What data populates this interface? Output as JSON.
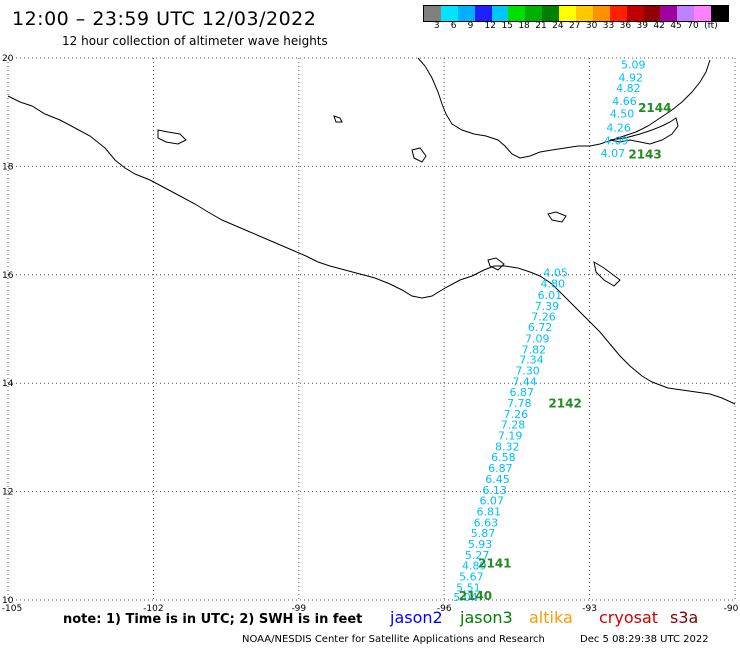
{
  "title": "12:00 – 23:59 UTC 12/03/2022",
  "subtitle": "12 hour collection of altimeter wave heights",
  "scale": {
    "colors": [
      "#808080",
      "#00e5ff",
      "#00b0ff",
      "#2020ff",
      "#00c8ff",
      "#00e000",
      "#00b000",
      "#008000",
      "#ffff00",
      "#ffc800",
      "#ff9000",
      "#ff2000",
      "#c00000",
      "#900000",
      "#a000a0",
      "#c080ff",
      "#ff80ff",
      "#000000"
    ],
    "labels": [
      "3",
      "6",
      "9",
      "12",
      "15",
      "18",
      "21",
      "24",
      "27",
      "30",
      "33",
      "36",
      "39",
      "42",
      "45",
      "70",
      "(ft)"
    ]
  },
  "map": {
    "lon_range": [
      -105,
      -90
    ],
    "lat_range": [
      10,
      20
    ],
    "lon_ticks": [
      "-105",
      "-102",
      "-99",
      "-96",
      "-93",
      "-90"
    ],
    "lat_ticks": [
      "20",
      "18",
      "16",
      "14",
      "12",
      "10"
    ],
    "pass_color": "#228b22",
    "wave_color": "#00bfff",
    "passes": [
      {
        "id": "2144",
        "lat": 19.0,
        "lon": -92.0
      },
      {
        "id": "2143",
        "lat": 18.15,
        "lon": -92.2
      },
      {
        "id": "2142",
        "lat": 13.55,
        "lon": -93.85
      },
      {
        "id": "2141",
        "lat": 10.6,
        "lon": -95.3
      },
      {
        "id": "2140",
        "lat": 10.0,
        "lon": -95.7
      }
    ],
    "track_upper": [
      {
        "v": "5.09",
        "lat": 19.81,
        "lon": -92.1
      },
      {
        "v": "4.92",
        "lat": 19.57,
        "lon": -92.15
      },
      {
        "v": "4.82",
        "lat": 19.37,
        "lon": -92.2
      },
      {
        "v": "4.66",
        "lat": 19.13,
        "lon": -92.28
      },
      {
        "v": "4.50",
        "lat": 18.9,
        "lon": -92.33
      },
      {
        "v": "4.26",
        "lat": 18.64,
        "lon": -92.4
      },
      {
        "v": "4.09",
        "lat": 18.4,
        "lon": -92.45
      },
      {
        "v": "4.07",
        "lat": 18.17,
        "lon": -92.52
      }
    ],
    "track_lower": [
      {
        "v": "4.05",
        "lat": 15.97,
        "lon": -93.7
      },
      {
        "v": "4.80",
        "lat": 15.77,
        "lon": -93.76
      },
      {
        "v": "6.01",
        "lat": 15.55,
        "lon": -93.82
      },
      {
        "v": "7.39",
        "lat": 15.35,
        "lon": -93.88
      },
      {
        "v": "7.26",
        "lat": 15.16,
        "lon": -93.95
      },
      {
        "v": "6.72",
        "lat": 14.96,
        "lon": -94.02
      },
      {
        "v": "7.09",
        "lat": 14.75,
        "lon": -94.08
      },
      {
        "v": "7.82",
        "lat": 14.55,
        "lon": -94.15
      },
      {
        "v": "7.34",
        "lat": 14.36,
        "lon": -94.2
      },
      {
        "v": "7.30",
        "lat": 14.16,
        "lon": -94.28
      },
      {
        "v": "7.44",
        "lat": 13.96,
        "lon": -94.34
      },
      {
        "v": "6.87",
        "lat": 13.76,
        "lon": -94.4
      },
      {
        "v": "7.78",
        "lat": 13.56,
        "lon": -94.45
      },
      {
        "v": "7.26",
        "lat": 13.36,
        "lon": -94.52
      },
      {
        "v": "7.28",
        "lat": 13.16,
        "lon": -94.58
      },
      {
        "v": "7.19",
        "lat": 12.96,
        "lon": -94.64
      },
      {
        "v": "8.32",
        "lat": 12.76,
        "lon": -94.7
      },
      {
        "v": "6.58",
        "lat": 12.56,
        "lon": -94.78
      },
      {
        "v": "6.87",
        "lat": 12.36,
        "lon": -94.84
      },
      {
        "v": "6.45",
        "lat": 12.16,
        "lon": -94.9
      },
      {
        "v": "6.13",
        "lat": 11.96,
        "lon": -94.96
      },
      {
        "v": "6.07",
        "lat": 11.76,
        "lon": -95.02
      },
      {
        "v": "6.81",
        "lat": 11.56,
        "lon": -95.08
      },
      {
        "v": "6.63",
        "lat": 11.36,
        "lon": -95.14
      },
      {
        "v": "5.87",
        "lat": 11.16,
        "lon": -95.2
      },
      {
        "v": "5.93",
        "lat": 10.96,
        "lon": -95.26
      },
      {
        "v": "5.27",
        "lat": 10.76,
        "lon": -95.32
      },
      {
        "v": "4.89",
        "lat": 10.56,
        "lon": -95.38
      },
      {
        "v": "5.67",
        "lat": 10.36,
        "lon": -95.44
      },
      {
        "v": "5.51",
        "lat": 10.16,
        "lon": -95.5
      },
      {
        "v": "5.04",
        "lat": 9.98,
        "lon": -95.56
      }
    ]
  },
  "note": "note:  1) Time is in UTC;  2) SWH is in feet",
  "satellites": [
    {
      "name": "jason2",
      "color": "#0000ff"
    },
    {
      "name": "jason3",
      "color": "#008000"
    },
    {
      "name": "altika",
      "color": "#ff9900"
    },
    {
      "name": "cryosat",
      "color": "#cc0000"
    },
    {
      "name": "s3a",
      "color": "#800000"
    }
  ],
  "credit": "NOAA/NESDIS Center for Satellite Applications and Research",
  "timestamp": "Dec  5 08:29:38 UTC 2022"
}
